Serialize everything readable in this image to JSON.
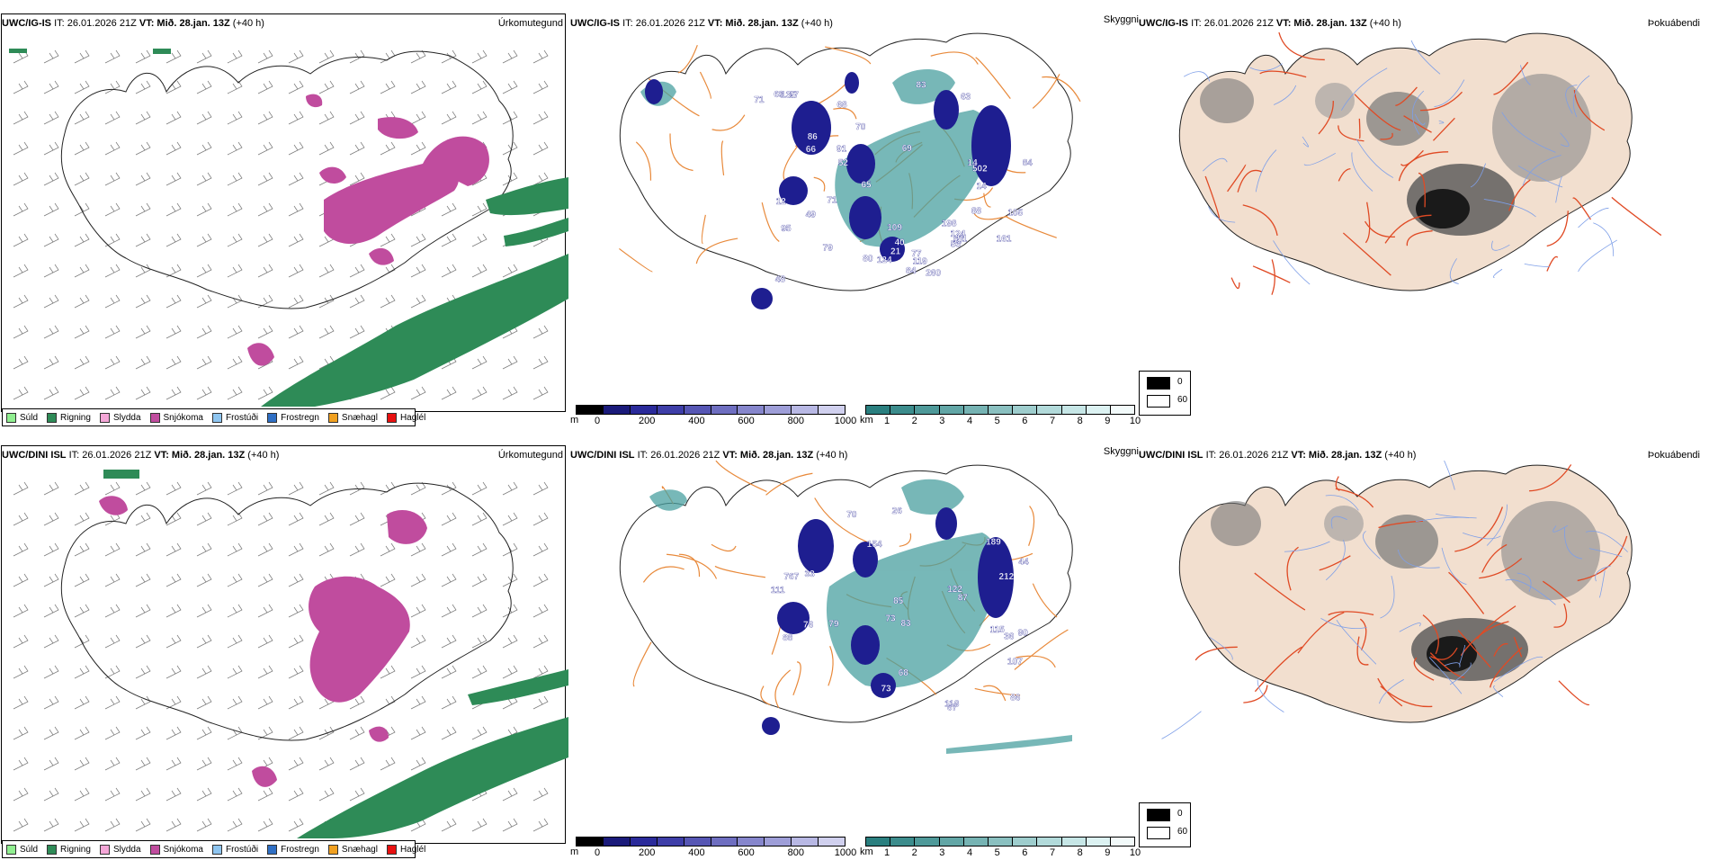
{
  "panels": [
    {
      "model": "UWC/IG-IS",
      "it": "IT: 26.01.2026 21Z",
      "vt_label": "VT:",
      "vt": "Mið. 28.jan. 13Z",
      "lead": "(+40 h)",
      "title": "Úrkomutegund"
    },
    {
      "model": "UWC/IG-IS",
      "it": "IT: 26.01.2026 21Z",
      "vt_label": "VT:",
      "vt": "Mið. 28.jan. 13Z",
      "lead": "(+40 h)",
      "title": "Skyggni"
    },
    {
      "model": "UWC/IG-IS",
      "it": "IT: 26.01.2026 21Z",
      "vt_label": "VT:",
      "vt": "Mið. 28.jan. 13Z",
      "lead": "(+40 h)",
      "title": "Þokuábendi"
    },
    {
      "model": "UWC/DINI ISL",
      "it": "IT: 26.01.2026 21Z",
      "vt_label": "VT:",
      "vt": "Mið. 28.jan. 13Z",
      "lead": "(+40 h)",
      "title": "Úrkomutegund"
    },
    {
      "model": "UWC/DINI ISL",
      "it": "IT: 26.01.2026 21Z",
      "vt_label": "VT:",
      "vt": "Mið. 28.jan. 13Z",
      "lead": "(+40 h)",
      "title": "Skyggni"
    },
    {
      "model": "UWC/DINI ISL",
      "it": "IT: 26.01.2026 21Z",
      "vt_label": "VT:",
      "vt": "Mið. 28.jan. 13Z",
      "lead": "(+40 h)",
      "title": "Þokuábendi"
    }
  ],
  "precip_legend": [
    {
      "label": "Súld",
      "color": "#90ee90"
    },
    {
      "label": "Rigning",
      "color": "#2e8b57"
    },
    {
      "label": "Slydda",
      "color": "#f4a6d7"
    },
    {
      "label": "Snjókoma",
      "color": "#c04c9e"
    },
    {
      "label": "Frostúði",
      "color": "#8ec5f0"
    },
    {
      "label": "Frostregn",
      "color": "#2f6fc4"
    },
    {
      "label": "Snæhagl",
      "color": "#f0a020"
    },
    {
      "label": "Haglél",
      "color": "#e81010"
    }
  ],
  "vis_colorbars": {
    "m": {
      "unit": "m",
      "ticks": [
        "0",
        "200",
        "400",
        "600",
        "800",
        "1000"
      ],
      "colors": [
        "#000000",
        "#1a1a7a",
        "#2a2a9a",
        "#3e3ea8",
        "#5656b4",
        "#6e6ec0",
        "#8686cc",
        "#9e9ed8",
        "#b8b8e4",
        "#d0d0ee"
      ]
    },
    "km": {
      "unit": "km",
      "ticks": [
        "1",
        "2",
        "3",
        "4",
        "5",
        "6",
        "7",
        "8",
        "9",
        "10"
      ],
      "colors": [
        "#2a7f7f",
        "#3c8c8c",
        "#4e9999",
        "#62a6a6",
        "#76b3b3",
        "#8ac0c0",
        "#9ecdcd",
        "#b2dada",
        "#c6e6e6",
        "#dcf2f2",
        "#f2fafa"
      ]
    }
  },
  "fog_legend": [
    {
      "label": "0",
      "color": "#000000"
    },
    {
      "label": "60",
      "color": "#ffffff"
    }
  ],
  "vis_labels_row0": [
    "80",
    "40",
    "69",
    "71",
    "84",
    "95",
    "21",
    "12",
    "14",
    "86",
    "49",
    "161",
    "124",
    "260",
    "63",
    "119",
    "124",
    "57",
    "105",
    "502",
    "17",
    "14",
    "66",
    "52",
    "77",
    "79",
    "83",
    "84",
    "68",
    "91",
    "69",
    "198",
    "88",
    "109",
    "53",
    "70",
    "135",
    "51",
    "65",
    "71",
    "48"
  ],
  "vis_labels_row1": [
    "107",
    "115",
    "189",
    "212",
    "154",
    "118",
    "44",
    "76",
    "83",
    "73",
    "26",
    "122",
    "87",
    "67",
    "68",
    "767",
    "88",
    "70",
    "86",
    "111",
    "73",
    "85",
    "36",
    "79",
    "33",
    "90"
  ],
  "colors": {
    "roads": "#e8893a",
    "terrain": "#f2dfcf",
    "rivers": "#7e9fe8",
    "red_roads": "#e04a24",
    "coast": "#222222",
    "snow": "#c04c9e",
    "rain": "#2e8b57",
    "teal": "#4aa0a0",
    "navy": "#1e1e90"
  }
}
